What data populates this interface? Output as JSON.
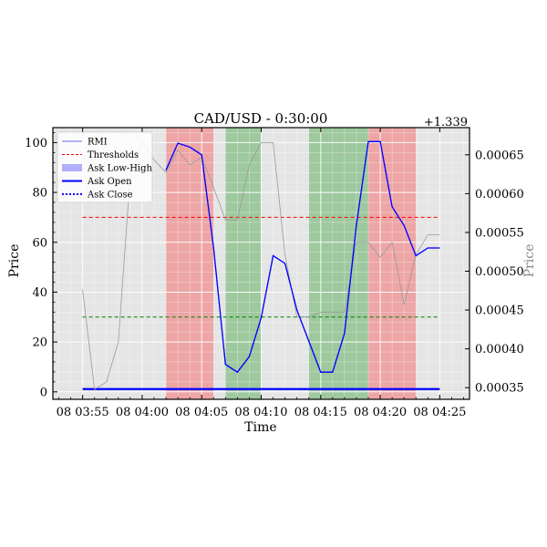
{
  "chart_data": {
    "type": "line",
    "title": "CAD/USD - 0:30:00",
    "xlabel": "Time",
    "ylabel": "Price",
    "ylabel_right": "Price",
    "right_offset_label": "+1.339",
    "x_tick_labels": [
      "08 03:55",
      "08 04:00",
      "08 04:05",
      "08 04:10",
      "08 04:15",
      "08 04:20",
      "08 04:25"
    ],
    "x_tick_minutes": [
      0,
      5,
      10,
      15,
      20,
      25,
      30
    ],
    "xlim_minutes": [
      -2.5,
      32.5
    ],
    "ylim_left": [
      -3,
      106
    ],
    "y_ticks_left": [
      0,
      20,
      40,
      60,
      80,
      100
    ],
    "ylim_right": [
      0.000335,
      0.000685
    ],
    "y_ticks_right": [
      0.00035,
      0.0004,
      0.00045,
      0.0005,
      0.00055,
      0.0006,
      0.00065
    ],
    "y_tick_labels_right": [
      "0.00035",
      "0.00040",
      "0.00045",
      "0.00050",
      "0.00055",
      "0.00060",
      "0.00065"
    ],
    "grid": true,
    "legend_position": "upper-left",
    "colors": {
      "background": "#e5e5e5",
      "rmi": "#9a9a9a",
      "ask": "#0000ff",
      "buy_band": "#85bd85",
      "sell_band": "#ef8f8f",
      "upper_threshold": "#ff0000",
      "lower_threshold": "#008000"
    },
    "legend": [
      {
        "label": "RMI",
        "style": "rmi"
      },
      {
        "label": "Thresholds",
        "style": "thresholds"
      },
      {
        "label": "Ask Low-High",
        "style": "band"
      },
      {
        "label": "Ask Open",
        "style": "open"
      },
      {
        "label": "Ask Close",
        "style": "close"
      }
    ],
    "thresholds": {
      "upper": 70,
      "lower": 30
    },
    "shaded_regions": [
      {
        "start": 7,
        "end": 11,
        "signal": "sell"
      },
      {
        "start": 12,
        "end": 15,
        "signal": "buy"
      },
      {
        "start": 19,
        "end": 24,
        "signal": "buy"
      },
      {
        "start": 24,
        "end": 28,
        "signal": "sell"
      }
    ],
    "series": [
      {
        "name": "RMI",
        "axis": "left",
        "x": [
          0,
          1,
          2,
          3,
          4,
          5,
          6,
          7,
          8,
          9,
          10,
          11,
          12,
          13,
          14,
          15,
          16,
          17,
          18,
          19,
          20,
          21,
          22,
          23,
          24,
          25,
          26,
          27,
          28,
          29,
          30
        ],
        "values": [
          41,
          1,
          4,
          20,
          87,
          100,
          93,
          88,
          97,
          91,
          94,
          82,
          69,
          69,
          91,
          100,
          100,
          55,
          30,
          30,
          32,
          32,
          32,
          60,
          60,
          54,
          60,
          35,
          55,
          63,
          63
        ]
      },
      {
        "name": "Ask Open",
        "axis": "right",
        "x": [
          7,
          8,
          9,
          10,
          11,
          12,
          13,
          14,
          15,
          16,
          17,
          18,
          19,
          20,
          21,
          22,
          23,
          24,
          25,
          26,
          27,
          28,
          29,
          30
        ],
        "values": [
          0.00063,
          0.000665,
          0.00066,
          0.00065,
          0.00053,
          0.00038,
          0.00037,
          0.00039,
          0.00044,
          0.00052,
          0.00051,
          0.00045,
          0.00041,
          0.00037,
          0.00037,
          0.00042,
          0.00056,
          0.000667,
          0.000667,
          0.000583,
          0.000559,
          0.00052,
          0.00053,
          0.00053
        ]
      }
    ]
  }
}
